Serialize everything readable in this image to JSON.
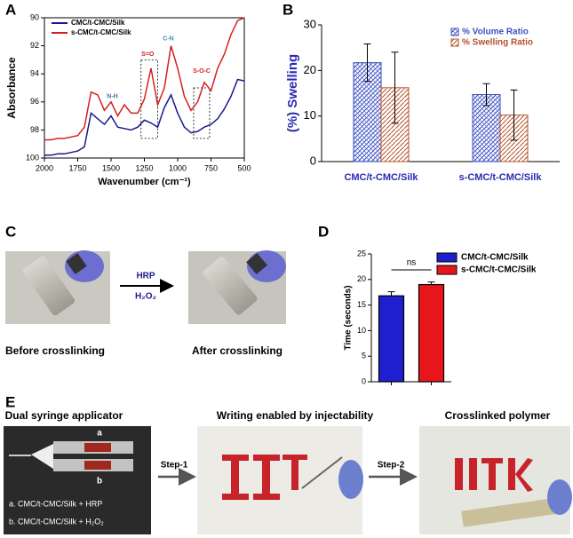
{
  "chart_data": [
    {
      "type": "line",
      "ylabel": "Absorbance",
      "xlabel": "Wavenumber (cm⁻¹)",
      "x": [
        2000,
        1950,
        1900,
        1850,
        1800,
        1750,
        1700,
        1650,
        1600,
        1550,
        1500,
        1450,
        1400,
        1350,
        1300,
        1250,
        1200,
        1150,
        1100,
        1050,
        1000,
        950,
        900,
        850,
        800,
        750,
        700,
        650,
        600,
        550,
        500
      ],
      "series": [
        {
          "name": "CMC/t-CMC/Silk",
          "color": "#1a1a8c",
          "values": [
            99.8,
            99.8,
            99.7,
            99.7,
            99.6,
            99.5,
            99.2,
            96.8,
            97.2,
            97.6,
            97.0,
            97.8,
            97.9,
            98.0,
            97.8,
            97.3,
            97.5,
            97.8,
            96.4,
            95.5,
            96.8,
            97.8,
            98.2,
            98.1,
            97.8,
            97.6,
            97.2,
            96.5,
            95.6,
            94.4,
            94.5
          ]
        },
        {
          "name": "s-CMC/t-CMC/Silk",
          "color": "#d42020",
          "values": [
            98.7,
            98.7,
            98.6,
            98.6,
            98.5,
            98.4,
            97.8,
            95.3,
            95.5,
            96.6,
            96.0,
            97.0,
            96.2,
            96.8,
            96.8,
            95.8,
            93.6,
            96.2,
            95.0,
            92.0,
            93.6,
            95.6,
            96.6,
            96.0,
            94.6,
            95.2,
            93.6,
            92.6,
            91.2,
            90.2,
            90.0
          ]
        }
      ],
      "annotations": [
        {
          "text": "N-H",
          "color": "#4a6fa5"
        },
        {
          "text": "S=O",
          "color": "#d42020"
        },
        {
          "text": "C-N",
          "color": "#4a8fa5"
        },
        {
          "text": "S-O-C",
          "color": "#d42020"
        }
      ],
      "xlim": [
        2000,
        500
      ],
      "xticks": [
        2000,
        1750,
        1500,
        1250,
        1000,
        750,
        500
      ],
      "ylim": [
        100,
        90
      ],
      "yticks": [
        90,
        92,
        94,
        96,
        98,
        100
      ]
    },
    {
      "type": "bar",
      "ylabel": "(%) Swelling",
      "categories": [
        "CMC/t-CMC/Silk",
        "s-CMC/t-CMC/Silk"
      ],
      "series": [
        {
          "name": "% Volume Ratio",
          "color": "#3a4fc0",
          "values": [
            21.7,
            14.7
          ],
          "errors": [
            4.1,
            2.4
          ]
        },
        {
          "name": "% Swelling Ratio",
          "color": "#b5502a",
          "values": [
            16.2,
            10.2
          ],
          "errors": [
            7.8,
            5.5
          ]
        }
      ],
      "ylim": [
        0,
        30
      ],
      "yticks": [
        0,
        10,
        20,
        30
      ]
    },
    {
      "type": "bar",
      "ylabel": "Time (seconds)",
      "series": [
        {
          "name": "CMC/t-CMC/Silk",
          "color": "#1f1fd0",
          "values": [
            16.8
          ],
          "errors": [
            0.8
          ]
        },
        {
          "name": "s-CMC/t-CMC/Silk",
          "color": "#e8161b",
          "values": [
            19.0
          ],
          "errors": [
            0.5
          ]
        }
      ],
      "annotations": [
        {
          "text": "ns"
        }
      ],
      "ylim": [
        0,
        25
      ],
      "yticks": [
        0,
        5,
        10,
        15,
        20,
        25
      ]
    }
  ],
  "panel_labels": [
    "A",
    "B",
    "C",
    "D",
    "E"
  ],
  "panel_c": {
    "reagent_top": "HRP",
    "reagent_bottom": "H₂O₂",
    "captions": [
      "Before crosslinking",
      "After crosslinking"
    ]
  },
  "panel_e": {
    "titles": [
      "Dual syringe applicator",
      "Writing enabled by injectability",
      "Crosslinked polymer"
    ],
    "steps": [
      "Step-1",
      "Step-2"
    ],
    "syringe_labels": [
      "a",
      "b"
    ],
    "legend": [
      "a. CMC/t-CMC/Silk + HRP",
      "b. CMC/t-CMC/Silk + H₂O₂"
    ]
  }
}
